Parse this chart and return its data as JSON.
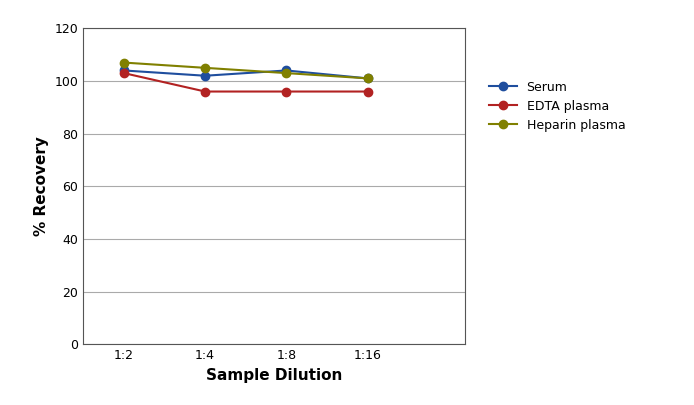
{
  "x_labels": [
    "1:2",
    "1:4",
    "1:8",
    "1:16"
  ],
  "x_positions": [
    1,
    2,
    3,
    4
  ],
  "series": [
    {
      "label": "Serum",
      "color": "#1f4e9e",
      "values": [
        104,
        102,
        104,
        101
      ]
    },
    {
      "label": "EDTA plasma",
      "color": "#b22222",
      "values": [
        103,
        96,
        96,
        96
      ]
    },
    {
      "label": "Heparin plasma",
      "color": "#808000",
      "values": [
        107,
        105,
        103,
        101
      ]
    }
  ],
  "ylabel": "% Recovery",
  "xlabel": "Sample Dilution",
  "ylim": [
    0,
    120
  ],
  "yticks": [
    0,
    20,
    40,
    60,
    80,
    100,
    120
  ],
  "xlim": [
    0.5,
    5.2
  ],
  "background_color": "#ffffff",
  "grid_color": "#aaaaaa",
  "marker": "o",
  "markersize": 6,
  "linewidth": 1.5,
  "legend_fontsize": 9,
  "axis_label_fontsize": 11,
  "tick_fontsize": 9
}
